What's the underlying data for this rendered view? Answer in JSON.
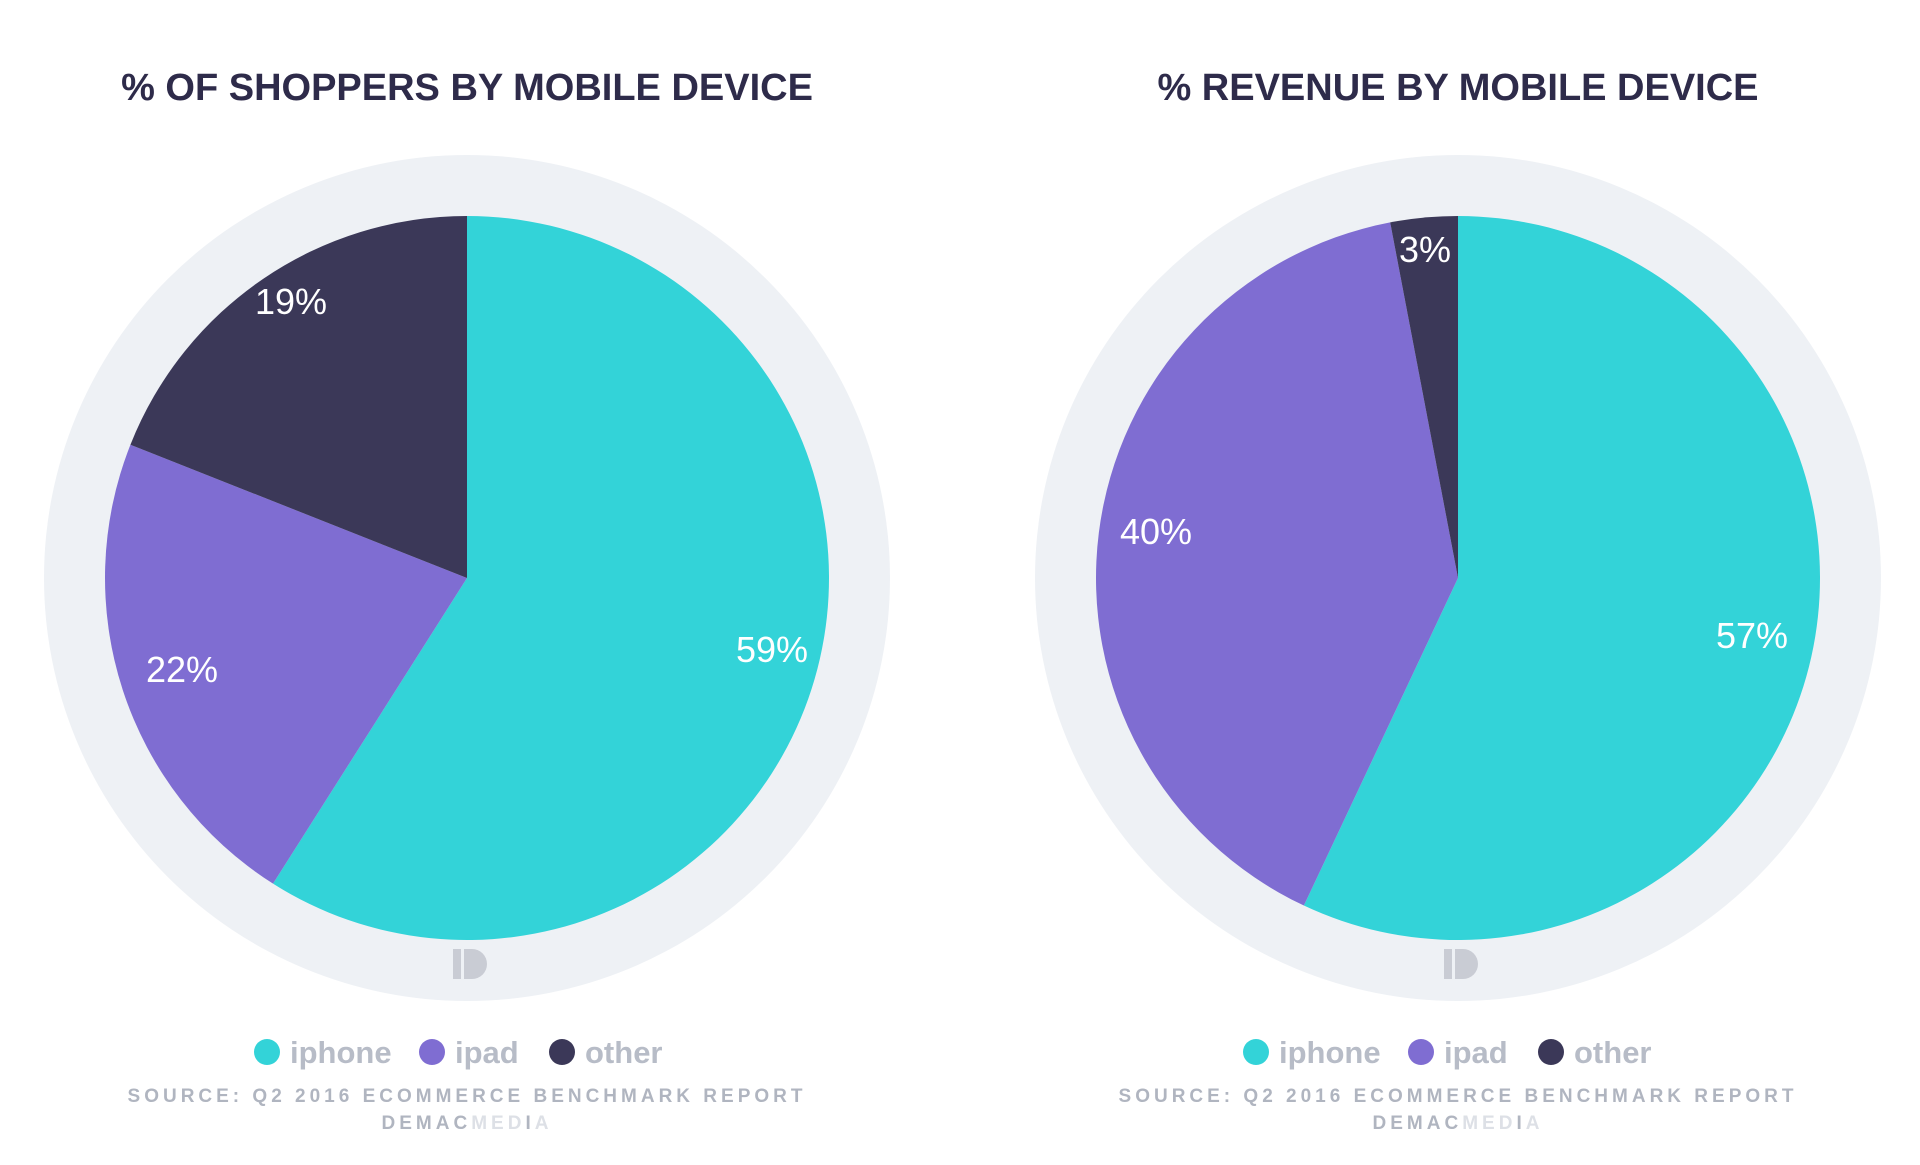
{
  "colors": {
    "iphone": "#33d3d8",
    "ipad": "#7f6dd2",
    "other": "#3b3858",
    "ring": "#eef1f5",
    "logo": "#c9ccd4"
  },
  "legend_labels": [
    "iphone",
    "ipad",
    "other"
  ],
  "source": "SOURCE: Q2 2016 ECOMMERCE BENCHMARK REPORT",
  "brand": {
    "part1": "DEMAC",
    "part2": "MED",
    "part3": "I",
    "part4": "A"
  },
  "chart_data": [
    {
      "type": "pie",
      "title": "% OF SHOPPERS BY MOBILE DEVICE",
      "categories": [
        "iphone",
        "ipad",
        "other"
      ],
      "values": [
        59,
        22,
        19
      ],
      "labels": [
        "59%",
        "22%",
        "19%"
      ],
      "start": "top",
      "direction": "clockwise",
      "legend_position": "bottom"
    },
    {
      "type": "pie",
      "title": "% REVENUE BY MOBILE DEVICE",
      "categories": [
        "iphone",
        "ipad",
        "other"
      ],
      "values": [
        57,
        40,
        3
      ],
      "labels": [
        "57%",
        "40%",
        "3%"
      ],
      "start": "top",
      "direction": "clockwise",
      "legend_position": "bottom"
    }
  ]
}
